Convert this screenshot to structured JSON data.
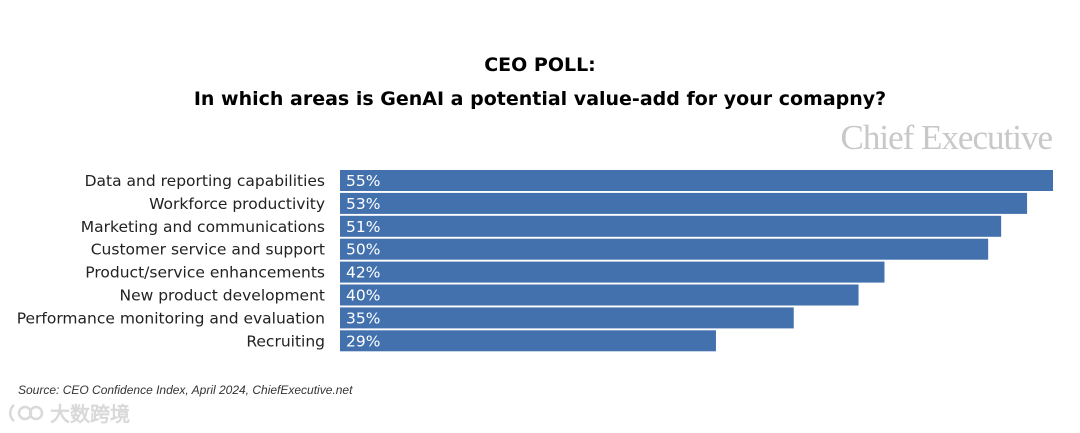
{
  "chart_data": {
    "type": "bar",
    "orientation": "horizontal",
    "title_line1": "CEO POLL:",
    "title_line2": "In which areas is GenAI a potential value-add for your comapny?",
    "categories": [
      "Data and reporting capabilities",
      "Workforce productivity",
      "Marketing and communications",
      "Customer service and support",
      "Product/service enhancements",
      "New product development",
      "Performance monitoring and evaluation",
      "Recruiting"
    ],
    "values": [
      55,
      53,
      51,
      50,
      42,
      40,
      35,
      29
    ],
    "value_labels": [
      "55%",
      "53%",
      "51%",
      "50%",
      "42%",
      "40%",
      "35%",
      "29%"
    ],
    "xlim": [
      0,
      55
    ],
    "bar_color": "#4271ae",
    "grid": false,
    "legend": false
  },
  "brand": "Chief Executive",
  "source": "Source: CEO Confidence Index, April 2024, ChiefExecutive.net",
  "watermark_text": "大数跨境"
}
